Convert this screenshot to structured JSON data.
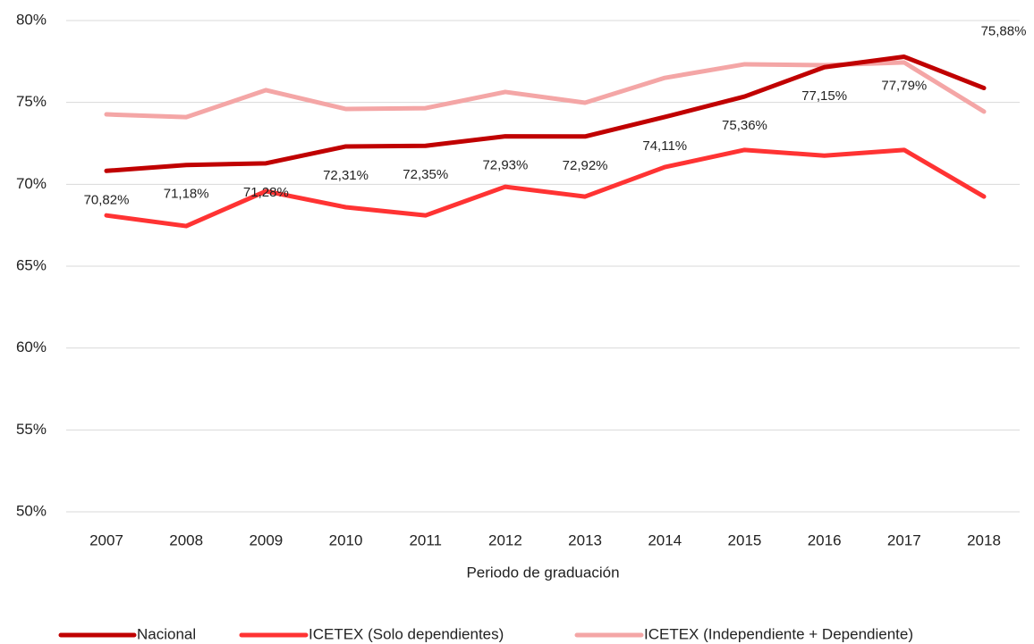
{
  "chart_data": {
    "type": "line",
    "x_label": "Periodo de graduación",
    "categories": [
      "2007",
      "2008",
      "2009",
      "2010",
      "2011",
      "2012",
      "2013",
      "2014",
      "2015",
      "2016",
      "2017",
      "2018"
    ],
    "series": [
      {
        "name": "Nacional",
        "color": "#c00000",
        "values": [
          70.82,
          71.18,
          71.28,
          72.31,
          72.35,
          72.93,
          72.92,
          74.11,
          75.36,
          77.15,
          77.79,
          75.88
        ],
        "value_labels": [
          "70,82%",
          "71,18%",
          "71,28%",
          "72,31%",
          "72,35%",
          "72,93%",
          "72,92%",
          "74,11%",
          "75,36%",
          "77,15%",
          "77,79%",
          "75,88%"
        ]
      },
      {
        "name": "ICETEX (Solo dependientes)",
        "color": "#ff3333",
        "values": [
          68.1,
          67.45,
          69.58,
          68.6,
          68.1,
          69.85,
          69.25,
          71.05,
          72.1,
          71.75,
          72.1,
          69.25
        ]
      },
      {
        "name": "ICETEX (Independiente + Dependiente)",
        "color": "#f4a6a6",
        "values": [
          74.27,
          74.1,
          75.75,
          74.6,
          74.65,
          75.64,
          74.98,
          76.5,
          77.33,
          77.27,
          77.44,
          74.44
        ]
      }
    ],
    "ylim": [
      50,
      80
    ],
    "yticks": [
      {
        "value": 50,
        "label": "50%"
      },
      {
        "value": 55,
        "label": "55%"
      },
      {
        "value": 60,
        "label": "60%"
      },
      {
        "value": 65,
        "label": "65%"
      },
      {
        "value": 70,
        "label": "70%"
      },
      {
        "value": 75,
        "label": "75%"
      },
      {
        "value": 80,
        "label": "80%"
      }
    ],
    "grid": true,
    "legend": "bottom"
  }
}
